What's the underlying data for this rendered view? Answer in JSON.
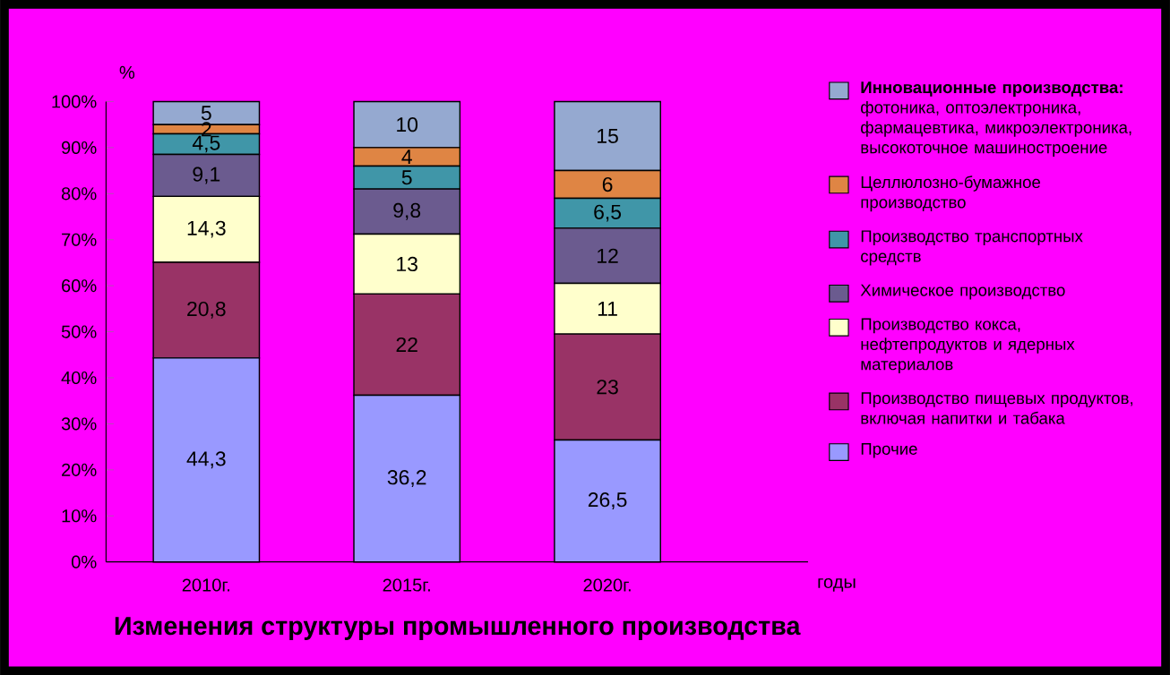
{
  "chart_data": {
    "type": "bar",
    "stacked": true,
    "title": "Изменения структуры промышленного производства",
    "ylabel": "%",
    "xlabel": "годы",
    "categories": [
      "2010г.",
      "2015г.",
      "2020г."
    ],
    "ylim": [
      0,
      100
    ],
    "yticks": [
      {
        "value": 0,
        "label": "0%"
      },
      {
        "value": 10,
        "label": "10%"
      },
      {
        "value": 20,
        "label": "20%"
      },
      {
        "value": 30,
        "label": "30%"
      },
      {
        "value": 40,
        "label": "40%"
      },
      {
        "value": 50,
        "label": "50%"
      },
      {
        "value": 60,
        "label": "60%"
      },
      {
        "value": 70,
        "label": "70%"
      },
      {
        "value": 80,
        "label": "80%"
      },
      {
        "value": 90,
        "label": "90%"
      },
      {
        "value": 100,
        "label": "100%"
      }
    ],
    "legend": "right",
    "grid": false,
    "series": [
      {
        "name": "Прочие",
        "color": "#9999ff",
        "values": [
          44.3,
          36.2,
          26.5
        ],
        "value_labels": [
          "44,3",
          "36,2",
          "26,5"
        ]
      },
      {
        "name": "Производство пищевых продуктов, включая напитки и табака",
        "color": "#993366",
        "values": [
          20.8,
          22,
          23
        ],
        "value_labels": [
          "20,8",
          "22",
          "23"
        ]
      },
      {
        "name": "Производство кокса, нефтепродуктов и ядерных материалов",
        "color": "#ffffcc",
        "values": [
          14.3,
          13,
          11
        ],
        "value_labels": [
          "14,3",
          "13",
          "11"
        ]
      },
      {
        "name": "Химическое производство",
        "color": "#6b5b8f",
        "values": [
          9.1,
          9.8,
          12
        ],
        "value_labels": [
          "9,1",
          "9,8",
          "12"
        ]
      },
      {
        "name": "Производство транспортных средств",
        "color": "#4096a8",
        "values": [
          4.5,
          5,
          6.5
        ],
        "value_labels": [
          "4,5",
          "5",
          "6,5"
        ]
      },
      {
        "name": "Целлюлозно-бумажное производство",
        "color": "#df8544",
        "values": [
          2,
          4,
          6
        ],
        "value_labels": [
          "2",
          "4",
          "6"
        ]
      },
      {
        "name": "**Инновационные производства:** фотоника, оптоэлектроника, фармацевтика, микроэлектроника, высокоточное машиностроение",
        "color": "#95a9d0",
        "values": [
          5,
          10,
          15
        ],
        "value_labels": [
          "5",
          "10",
          "15"
        ]
      }
    ]
  }
}
